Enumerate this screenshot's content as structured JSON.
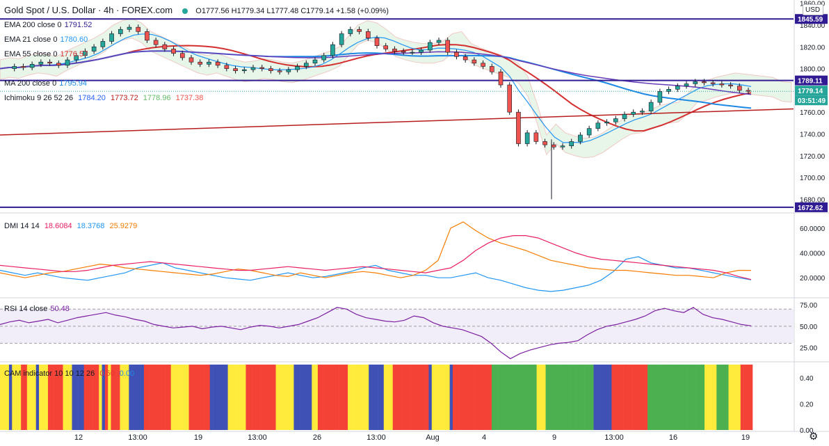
{
  "header": {
    "symbol": "Gold Spot / U.S. Dollar · 4h · FOREX.com",
    "ohlc": "O1777.56  H1779.34  L1777.48  C1779.14  +1.58 (+0.09%)",
    "currency": "USD"
  },
  "indicators": {
    "ema200": {
      "label": "EMA 200 close 0",
      "value": "1791.52"
    },
    "ema21": {
      "label": "EMA 21 close 0",
      "value": "1780.60"
    },
    "ema55": {
      "label": "EMA 55 close 0",
      "value": "1776.57"
    },
    "ma200": {
      "label": "MA 200 close 0",
      "value": "1795.94"
    },
    "ichimoku": {
      "label": "Ichimoku 9 26 52 26",
      "v1": "1784.20",
      "v2": "1773.72",
      "v3": "1778.96",
      "v4": "1737.38"
    },
    "dmi": {
      "label": "DMI 14 14",
      "v1": "18.6084",
      "v2": "18.3768",
      "v3": "25.9279"
    },
    "rsi": {
      "label": "RSI 14 close",
      "value": "50.48"
    },
    "cam": {
      "label": "CAM indicator 10 10 12 26",
      "v1": "0.50",
      "v2": "0.00"
    }
  },
  "price_axis": {
    "ticks": [
      "1860.00",
      "1840.00",
      "1820.00",
      "1800.00",
      "1780.00",
      "1760.00",
      "1740.00",
      "1720.00",
      "1700.00",
      "1680.00"
    ],
    "markers": [
      {
        "text": "1845.59",
        "color": "#311b92"
      },
      {
        "text": "1789.11",
        "color": "#311b92"
      },
      {
        "text": "1779.14",
        "color": "#26a69a"
      },
      {
        "text": "03:51:49",
        "color": "#26a69a"
      },
      {
        "text": "1672.62",
        "color": "#311b92"
      }
    ]
  },
  "dmi_axis": {
    "ticks": [
      "60.0000",
      "40.0000",
      "20.0000"
    ]
  },
  "rsi_axis": {
    "ticks": [
      "75.00",
      "50.00",
      "25.00"
    ]
  },
  "cam_axis": {
    "ticks": [
      "0.40",
      "0.20",
      "0.00"
    ]
  },
  "time_axis": {
    "ticks": [
      "12",
      "13:00",
      "19",
      "13:00",
      "26",
      "13:00",
      "Aug",
      "4",
      "9",
      "13:00",
      "16",
      "19"
    ]
  },
  "chart_data": {
    "type": "line",
    "title": "Gold Spot / U.S. Dollar · 4h · FOREX.com",
    "price_range": [
      1670,
      1863
    ],
    "horizontal_levels": [
      1845.59,
      1789.11,
      1672.62
    ],
    "trendline": {
      "from": 1739,
      "to": 1763
    },
    "close_series": [
      1800,
      1802,
      1801,
      1804,
      1806,
      1805,
      1803,
      1808,
      1812,
      1816,
      1820,
      1825,
      1832,
      1836,
      1838,
      1834,
      1826,
      1822,
      1818,
      1814,
      1810,
      1806,
      1804,
      1806,
      1803,
      1800,
      1798,
      1799,
      1801,
      1800,
      1798,
      1797,
      1799,
      1802,
      1805,
      1808,
      1812,
      1822,
      1832,
      1836,
      1834,
      1828,
      1821,
      1818,
      1816,
      1815,
      1815,
      1817,
      1824,
      1826,
      1815,
      1811,
      1808,
      1805,
      1802,
      1797,
      1785,
      1760,
      1731,
      1741,
      1733,
      1730,
      1728,
      1729,
      1733,
      1739,
      1745,
      1750,
      1751,
      1754,
      1758,
      1760,
      1761,
      1769,
      1779,
      1781,
      1784,
      1786,
      1788,
      1787,
      1786,
      1785,
      1784,
      1780,
      1779.14
    ],
    "rsi_range": [
      10,
      80
    ],
    "rsi_levels": [
      70,
      50,
      30
    ],
    "rsi_series": [
      52,
      55,
      57,
      54,
      56,
      58,
      54,
      57,
      60,
      62,
      64,
      66,
      63,
      61,
      58,
      56,
      52,
      50,
      48,
      49,
      50,
      47,
      49,
      50,
      48,
      46,
      49,
      51,
      50,
      48,
      50,
      52,
      56,
      60,
      66,
      72,
      70,
      64,
      60,
      58,
      56,
      55,
      57,
      62,
      60,
      54,
      50,
      48,
      46,
      42,
      38,
      30,
      20,
      12,
      18,
      22,
      25,
      28,
      30,
      31,
      33,
      40,
      46,
      50,
      52,
      55,
      58,
      62,
      68,
      71,
      68,
      66,
      72,
      64,
      60,
      58,
      55,
      52,
      50.48
    ],
    "dmi_range": [
      5,
      70
    ],
    "dmi_series": [
      {
        "name": "",
        "color": "#2196f3",
        "values": [
          26,
          24,
          22,
          24,
          22,
          20,
          19,
          18,
          20,
          22,
          24,
          28,
          30,
          32,
          28,
          26,
          24,
          22,
          20,
          19,
          18,
          20,
          22,
          24,
          22,
          20,
          21,
          23,
          25,
          28,
          30,
          26,
          24,
          22,
          22,
          20,
          20,
          22,
          24,
          20,
          18,
          15,
          12,
          10,
          9,
          10,
          12,
          14,
          18,
          25,
          35,
          37,
          32,
          30,
          28,
          28,
          26,
          24,
          22,
          20,
          18.38
        ]
      },
      {
        "name": "",
        "color": "#f57c00",
        "values": [
          24,
          22,
          20,
          22,
          24,
          25,
          27,
          29,
          31,
          30,
          28,
          27,
          26,
          25,
          24,
          23,
          22,
          23,
          25,
          27,
          26,
          24,
          22,
          21,
          24,
          22,
          20,
          22,
          24,
          25,
          24,
          22,
          20,
          22,
          26,
          34,
          60,
          65,
          58,
          52,
          48,
          45,
          42,
          38,
          34,
          32,
          30,
          28,
          27,
          26,
          26,
          25,
          24,
          23,
          22,
          22,
          21,
          20,
          24,
          26,
          25.93
        ]
      },
      {
        "name": "",
        "color": "#e91e63",
        "values": [
          30,
          29,
          28,
          27,
          26,
          25,
          25,
          26,
          28,
          30,
          31,
          32,
          33,
          32,
          31,
          30,
          29,
          28,
          27,
          26,
          26,
          27,
          28,
          29,
          28,
          27,
          26,
          27,
          28,
          29,
          28,
          27,
          26,
          25,
          24,
          26,
          28,
          34,
          42,
          48,
          52,
          54,
          54,
          52,
          48,
          44,
          40,
          37,
          35,
          34,
          33,
          32,
          31,
          30,
          29,
          28,
          27,
          26,
          24,
          21,
          18.61
        ]
      }
    ],
    "cam_range": [
      0,
      0.5
    ],
    "cam_colors": {
      "yellow": "#ffeb3b",
      "red": "#f44336",
      "blue": "#3f51b5",
      "green": "#4caf50"
    },
    "cam_sequence": "YYYBYYYRRYYYBYYYRRRRRYYYBBBBRRRRRYBRYRRRYYYBBBBBRRRRRRRRRYYYYYYRRRRRRRBBBBBBYYYYYYRRRRRRRRRRYYYYYYBBBBBBYYRRRRRRRRRRYYYYYYYBBBBBYYYRRRRRRRRRRRRBYYYYYYBRRRRRRRRRRRRRGGGGGGGGGGGGGGGYYYGGGGGGGGGGGGGGGGBBBBBBRRRRRRRRRRRRGGGGGGGGGGGGGGGGGGGYYYYGGGGYYYYRRRR"
  }
}
